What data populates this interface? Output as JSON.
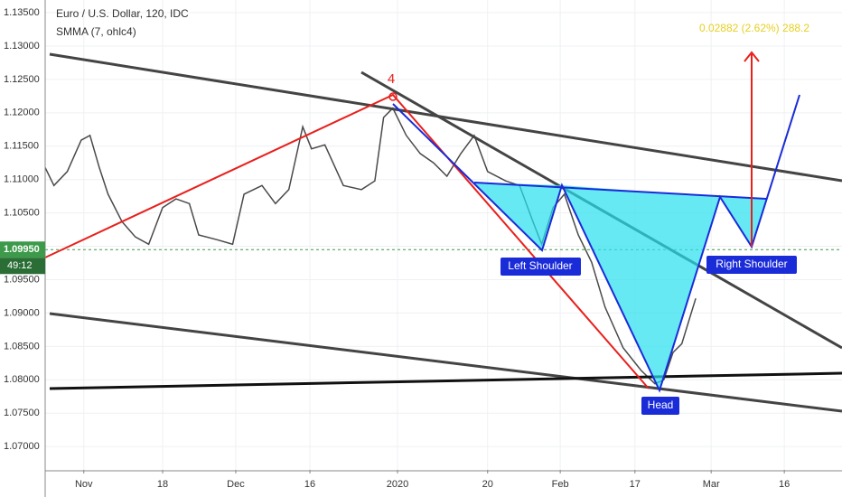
{
  "chart_data": {
    "type": "line",
    "title": "Euro / U.S. Dollar, 120, IDC",
    "subtitle": "SMMA (7, ohlc4)",
    "x": [
      -7.5,
      -5.8,
      -3.2,
      -0.5,
      1.2,
      3,
      4.7,
      7.4,
      10,
      12.6,
      15.3,
      17.9,
      20.5,
      22.3,
      25.8,
      28.9,
      31.1,
      34.6,
      37.2,
      39.8,
      42.5,
      44.2,
      46.8,
      50.4,
      53.9,
      56.5,
      58.2,
      60,
      62.6,
      65.3,
      67.9,
      70.5,
      73.2,
      75.8,
      78.4,
      81.9,
      84.6,
      87.2,
      88.9,
      91.1,
      93.3,
      96,
      98.6,
      101.2,
      104.7,
      108.2,
      110.9,
      112.6,
      114.4,
      116.1,
      118.8
    ],
    "values": [
      1.1118,
      1.1091,
      1.1112,
      1.1159,
      1.1166,
      1.1118,
      1.1078,
      1.1037,
      1.1014,
      1.1003,
      1.1058,
      1.1071,
      1.1064,
      1.1017,
      1.101,
      1.1003,
      1.1078,
      1.1091,
      1.1064,
      1.1085,
      1.1179,
      1.1146,
      1.1152,
      1.1091,
      1.1085,
      1.1098,
      1.1193,
      1.1207,
      1.1166,
      1.1139,
      1.1125,
      1.1105,
      1.1139,
      1.1166,
      1.1112,
      1.1098,
      1.1091,
      1.1037,
      1.1003,
      1.1058,
      1.1078,
      1.1017,
      1.0976,
      1.0909,
      1.0848,
      1.0814,
      1.0794,
      1.08,
      1.0841,
      1.0854,
      1.0922
    ],
    "color": "#4a4a4a",
    "xlim": [
      -7.5,
      147.2
    ],
    "xticks": [
      {
        "value": 0,
        "label": "Nov"
      },
      {
        "value": 15.3,
        "label": "18"
      },
      {
        "value": 29.5,
        "label": "Dec"
      },
      {
        "value": 43.9,
        "label": "16"
      },
      {
        "value": 60.9,
        "label": "2020"
      },
      {
        "value": 78.4,
        "label": "20"
      },
      {
        "value": 92.5,
        "label": "Feb"
      },
      {
        "value": 107,
        "label": "17"
      },
      {
        "value": 121.8,
        "label": "Mar"
      },
      {
        "value": 136,
        "label": "16"
      }
    ],
    "ylim": [
      1.0665,
      1.1369
    ],
    "yticks": [
      {
        "value": 1.07,
        "label": "1.07000"
      },
      {
        "value": 1.075,
        "label": "1.07500"
      },
      {
        "value": 1.08,
        "label": "1.08000"
      },
      {
        "value": 1.085,
        "label": "1.08500"
      },
      {
        "value": 1.09,
        "label": "1.09000"
      },
      {
        "value": 1.095,
        "label": "1.09500"
      },
      {
        "value": 1.1,
        "label": "1.10000"
      },
      {
        "value": 1.105,
        "label": "1.10500"
      },
      {
        "value": 1.11,
        "label": "1.11000"
      },
      {
        "value": 1.115,
        "label": "1.11500"
      },
      {
        "value": 1.12,
        "label": "1.12000"
      },
      {
        "value": 1.125,
        "label": "1.12500"
      },
      {
        "value": 1.13,
        "label": "1.13000"
      },
      {
        "value": 1.135,
        "label": "1.13500"
      }
    ],
    "grid": true,
    "last_price": {
      "value": 1.0995,
      "label": "1.09950"
    },
    "countdown": "49:12",
    "annotations": {
      "wave": "4",
      "measure": "0.02882 (2.62%) 288.2",
      "left_shoulder": "Left Shoulder",
      "head": "Head",
      "right_shoulder": "Right Shoulder"
    }
  }
}
